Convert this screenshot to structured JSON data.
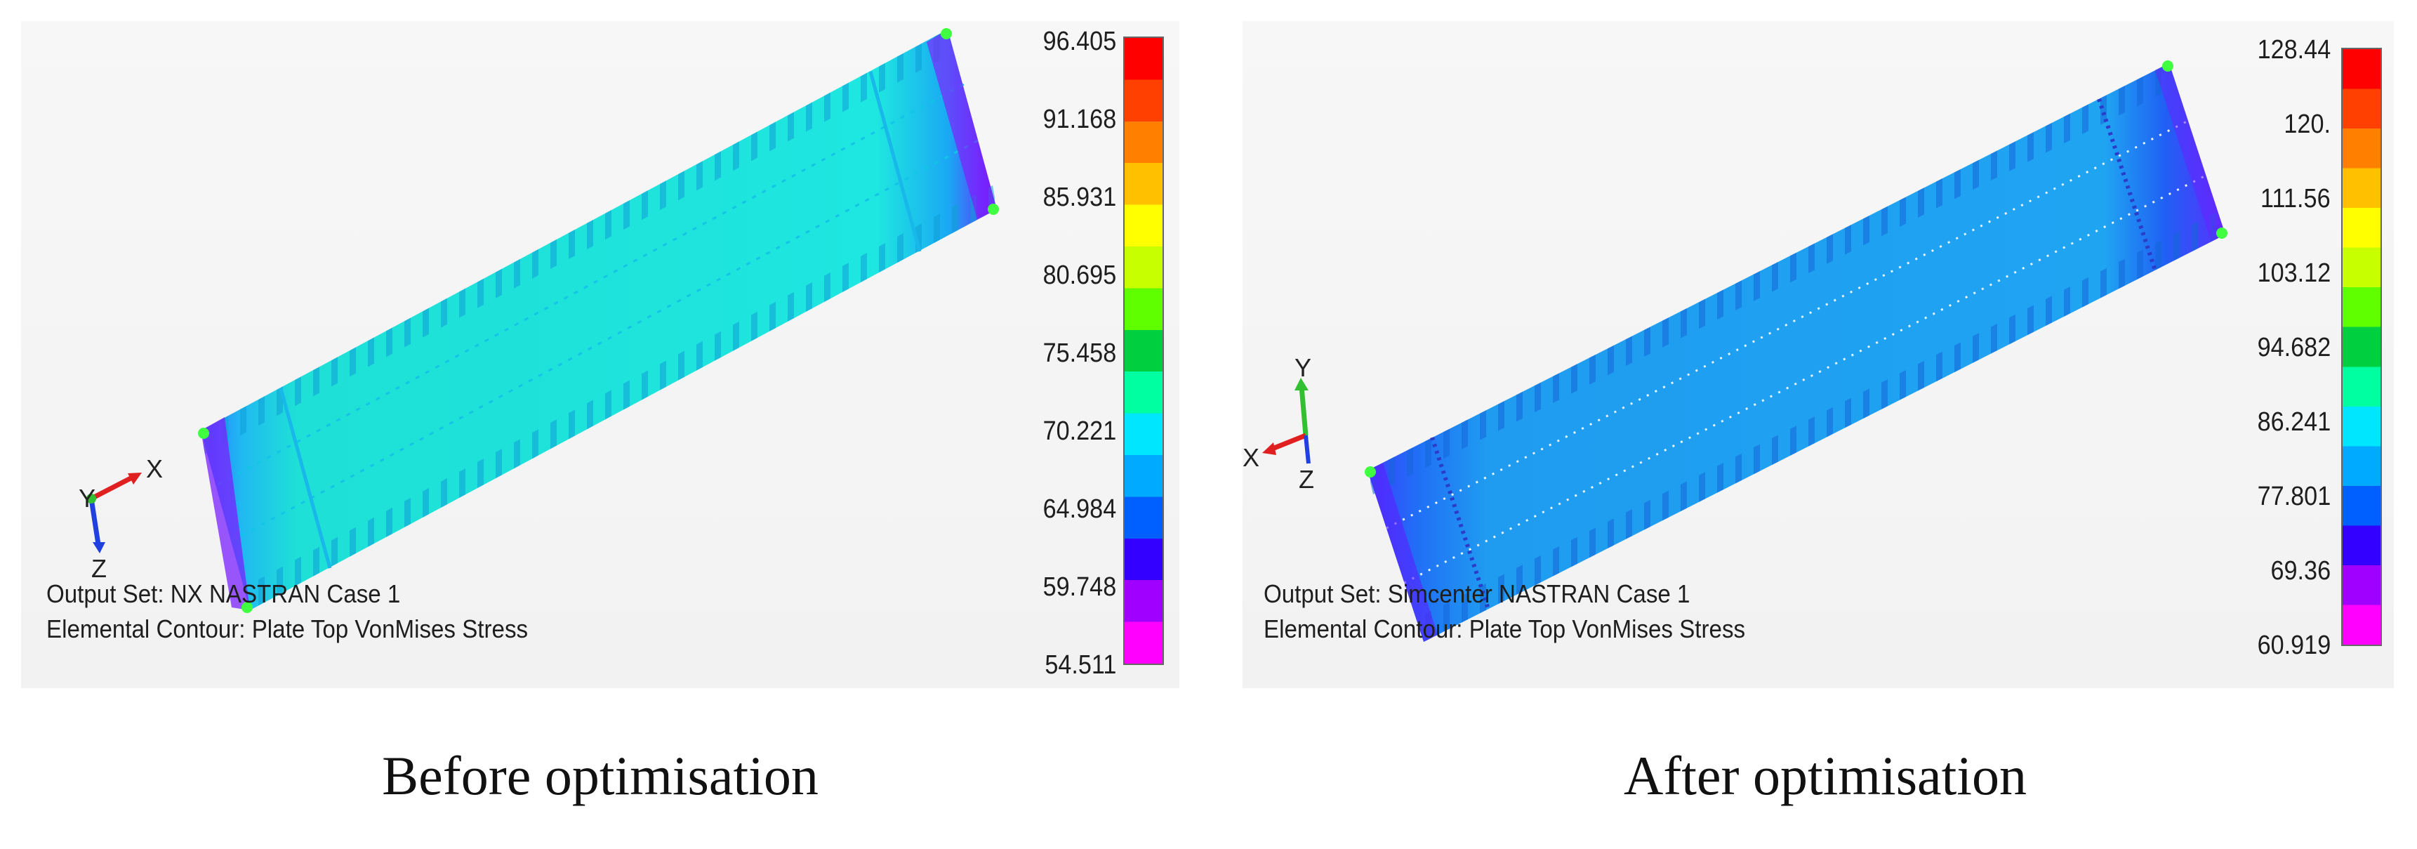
{
  "panels": [
    {
      "output_set": "Output Set: NX NASTRAN Case 1",
      "contour": "Elemental Contour: Plate Top VonMises Stress",
      "legend_ticks": [
        "96.405",
        "91.168",
        "85.931",
        "80.695",
        "75.458",
        "70.221",
        "64.984",
        "59.748",
        "54.511"
      ],
      "caption": "Before optimisation",
      "axes": {
        "x": "X",
        "y": "Y",
        "z": "Z"
      },
      "plate_color": "#18ded8"
    },
    {
      "output_set": "Output Set: Simcenter NASTRAN Case 1",
      "contour": "Elemental Contour: Plate Top VonMises Stress",
      "legend_ticks": [
        "128.44",
        "120.",
        "111.56",
        "103.12",
        "94.682",
        "86.241",
        "77.801",
        "69.36",
        "60.919"
      ],
      "caption": "After optimisation",
      "axes": {
        "x": "X",
        "y": "Y",
        "z": "Z"
      },
      "plate_color": "#1e9ef0"
    }
  ],
  "colors": {
    "scale": [
      "#ff00ff",
      "#a000ff",
      "#3300ff",
      "#0060ff",
      "#00aaff",
      "#00e6ff",
      "#00ffa0",
      "#00d040",
      "#60ff00",
      "#c8ff00",
      "#ffff00",
      "#ffc000",
      "#ff8000",
      "#ff4000",
      "#ff0000"
    ]
  }
}
